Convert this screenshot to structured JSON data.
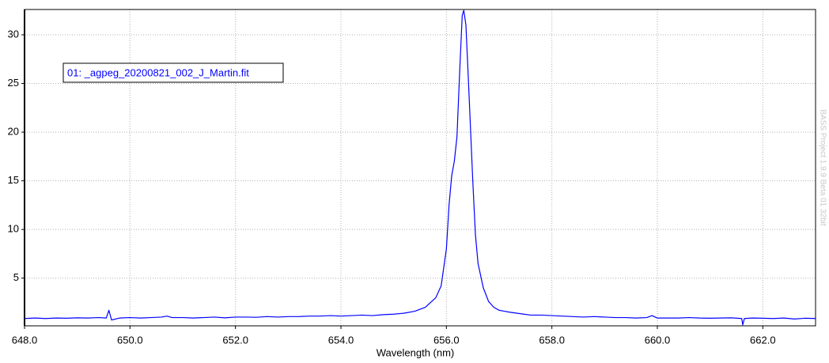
{
  "chart_data": {
    "type": "line",
    "x_label": "Wavelength (nm)",
    "watermark": "BASS Project 1.9.9 Beta 01 32bit",
    "xlim": [
      648,
      663
    ],
    "ylim": [
      0.1,
      32.6
    ],
    "xticks": [
      {
        "value": 648,
        "label": "648.0"
      },
      {
        "value": 650,
        "label": "650.0"
      },
      {
        "value": 652,
        "label": "652.0"
      },
      {
        "value": 654,
        "label": "654.0"
      },
      {
        "value": 656,
        "label": "656.0"
      },
      {
        "value": 658,
        "label": "658.0"
      },
      {
        "value": 660,
        "label": "660.0"
      },
      {
        "value": 662,
        "label": "662.0"
      }
    ],
    "yticks": [
      5,
      10,
      15,
      20,
      25,
      30
    ],
    "grid": true,
    "legend": "upper left",
    "x": [
      648.0,
      648.2,
      648.4,
      648.6,
      648.8,
      649.0,
      649.2,
      649.4,
      649.55,
      649.6,
      649.65,
      649.8,
      650.0,
      650.2,
      650.4,
      650.6,
      650.7,
      650.8,
      651.0,
      651.2,
      651.4,
      651.6,
      651.8,
      652.0,
      652.2,
      652.4,
      652.6,
      652.8,
      653.0,
      653.2,
      653.4,
      653.6,
      653.8,
      654.0,
      654.2,
      654.4,
      654.6,
      654.8,
      655.0,
      655.2,
      655.4,
      655.6,
      655.8,
      655.9,
      656.0,
      656.05,
      656.1,
      656.15,
      656.2,
      656.25,
      656.3,
      656.33,
      656.37,
      656.42,
      656.5,
      656.55,
      656.6,
      656.7,
      656.8,
      656.9,
      657.0,
      657.2,
      657.4,
      657.6,
      657.8,
      658.0,
      658.2,
      658.4,
      658.6,
      658.8,
      659.0,
      659.2,
      659.4,
      659.6,
      659.8,
      659.9,
      660.0,
      660.2,
      660.4,
      660.6,
      660.8,
      661.0,
      661.2,
      661.4,
      661.6,
      661.62,
      661.65,
      661.8,
      662.0,
      662.2,
      662.4,
      662.6,
      662.8,
      663.0
    ],
    "series": [
      {
        "name": "01: _agpeg_20200821_002_J_Martin.fit",
        "color": "#0000ff",
        "values": [
          0.85,
          0.9,
          0.85,
          0.9,
          0.88,
          0.92,
          0.9,
          0.95,
          0.9,
          1.7,
          0.7,
          0.9,
          0.95,
          0.9,
          0.95,
          1.0,
          1.1,
          0.95,
          0.95,
          0.9,
          0.95,
          1.0,
          0.92,
          1.0,
          1.0,
          0.98,
          1.05,
          1.0,
          1.05,
          1.05,
          1.1,
          1.1,
          1.15,
          1.1,
          1.15,
          1.2,
          1.15,
          1.25,
          1.3,
          1.4,
          1.6,
          2.0,
          3.0,
          4.2,
          8.0,
          12.5,
          15.5,
          17.0,
          19.5,
          26.0,
          32.0,
          32.5,
          31.0,
          25.0,
          15.0,
          9.5,
          6.5,
          4.0,
          2.6,
          2.0,
          1.7,
          1.5,
          1.35,
          1.2,
          1.2,
          1.15,
          1.1,
          1.05,
          1.0,
          1.05,
          1.0,
          0.95,
          0.95,
          0.9,
          0.95,
          1.15,
          0.9,
          0.9,
          0.9,
          0.95,
          0.9,
          0.88,
          0.9,
          0.92,
          0.85,
          0.2,
          0.85,
          0.9,
          0.88,
          0.85,
          0.9,
          0.8,
          0.88,
          0.85
        ]
      }
    ]
  }
}
